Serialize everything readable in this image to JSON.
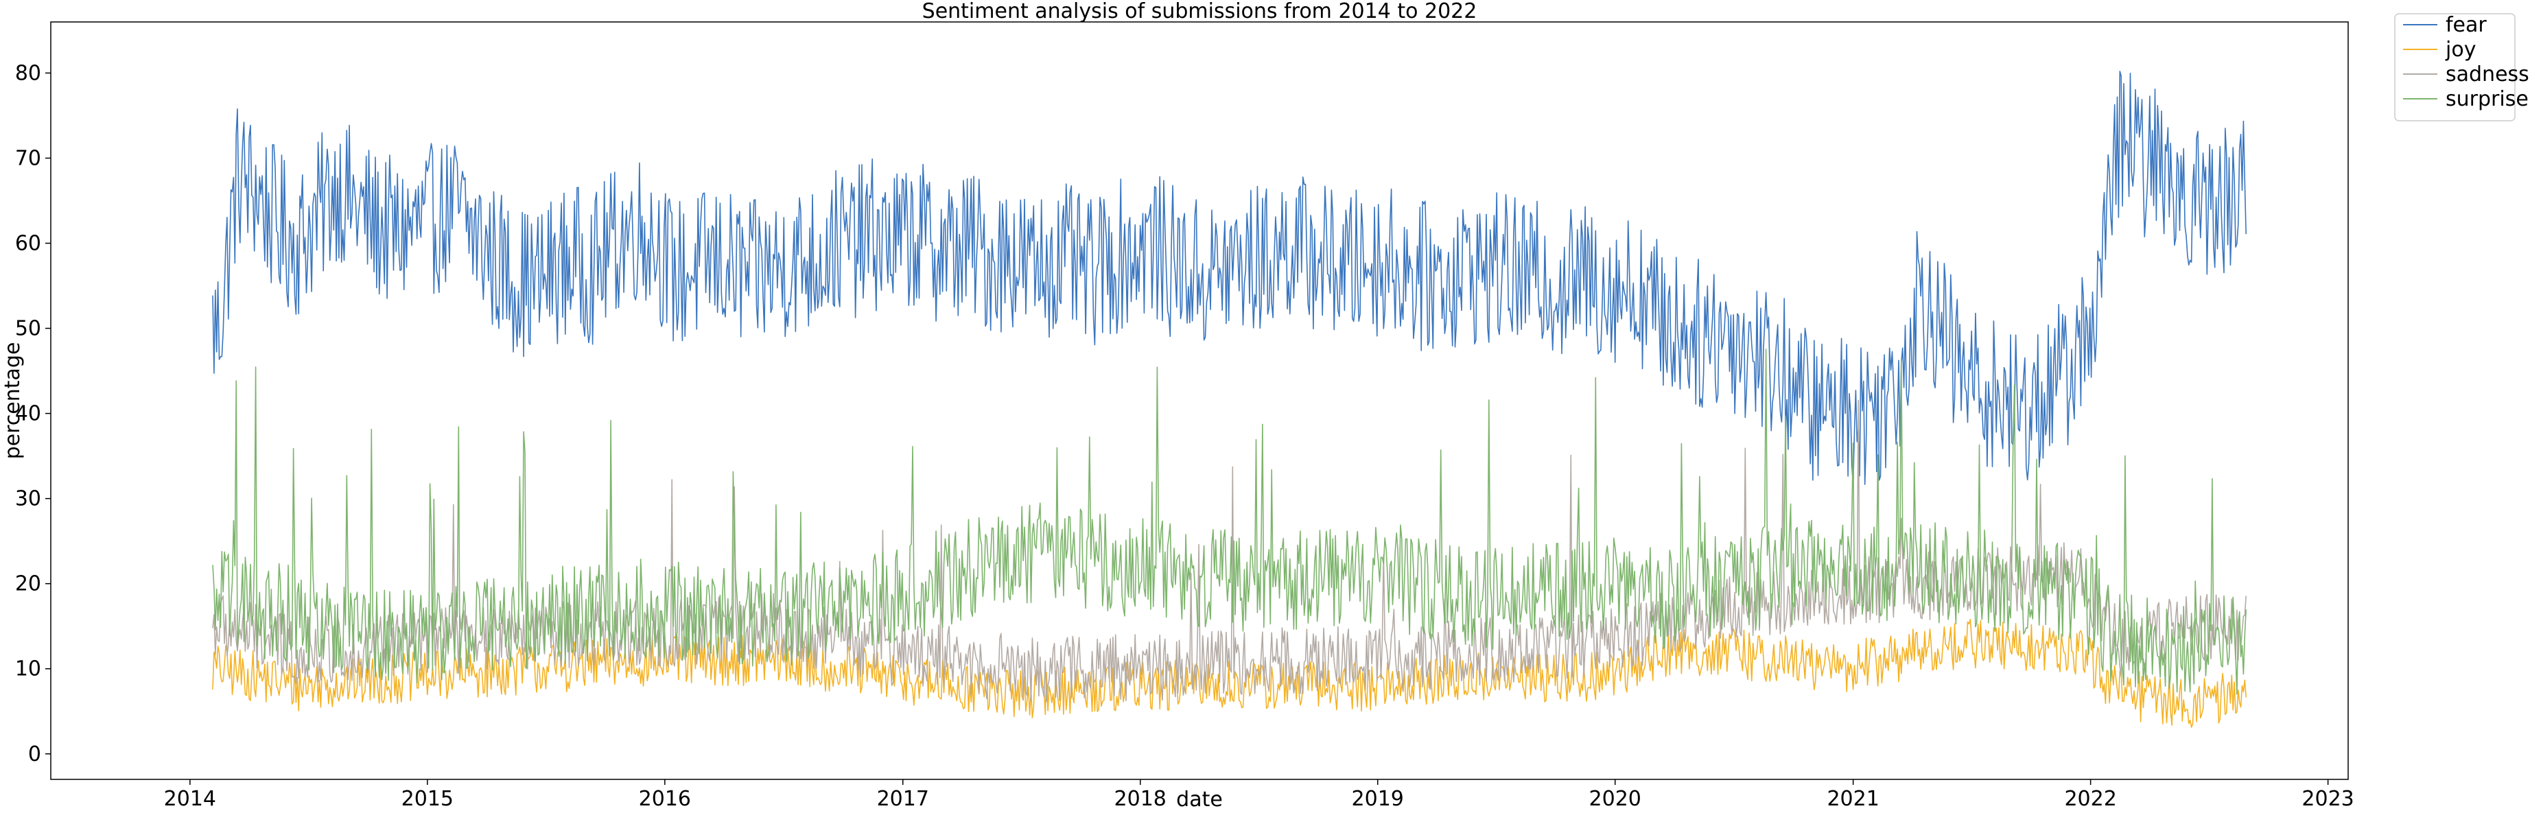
{
  "chart_data": {
    "type": "line",
    "title": "Sentiment analysis of submissions from 2014 to 2022",
    "xlabel": "date",
    "ylabel": "percentage",
    "xlim": [
      "2013-06-01",
      "2023-02-01"
    ],
    "ylim": [
      -3,
      86
    ],
    "x_ticks": [
      "2014",
      "2015",
      "2016",
      "2017",
      "2018",
      "2019",
      "2020",
      "2021",
      "2022",
      "2023"
    ],
    "y_ticks": [
      0,
      10,
      20,
      30,
      40,
      50,
      60,
      70,
      80
    ],
    "grid": false,
    "legend_position": "outside-top-right",
    "series": [
      {
        "name": "fear",
        "color": "#3a76bf",
        "start": "2014-02",
        "end": "2022-08",
        "points": [
          [
            "2014-02",
            50
          ],
          [
            "2014-03",
            68
          ],
          [
            "2014-04",
            66
          ],
          [
            "2014-05",
            62
          ],
          [
            "2014-06",
            60
          ],
          [
            "2014-07",
            63
          ],
          [
            "2014-08",
            67
          ],
          [
            "2014-09",
            64
          ],
          [
            "2014-10",
            62
          ],
          [
            "2014-11",
            61
          ],
          [
            "2014-12",
            62
          ],
          [
            "2015-01",
            63
          ],
          [
            "2015-02",
            64
          ],
          [
            "2015-03",
            61
          ],
          [
            "2015-04",
            58
          ],
          [
            "2015-05",
            56
          ],
          [
            "2015-06",
            55
          ],
          [
            "2015-07",
            57
          ],
          [
            "2015-08",
            58
          ],
          [
            "2015-09",
            57
          ],
          [
            "2015-10",
            60
          ],
          [
            "2015-11",
            62
          ],
          [
            "2015-12",
            61
          ],
          [
            "2016-01",
            56
          ],
          [
            "2016-02",
            57
          ],
          [
            "2016-03",
            58
          ],
          [
            "2016-04",
            57
          ],
          [
            "2016-05",
            56
          ],
          [
            "2016-06",
            57
          ],
          [
            "2016-07",
            58
          ],
          [
            "2016-08",
            58
          ],
          [
            "2016-09",
            60
          ],
          [
            "2016-10",
            60
          ],
          [
            "2016-11",
            61
          ],
          [
            "2016-12",
            60
          ],
          [
            "2017-01",
            61
          ],
          [
            "2017-02",
            60
          ],
          [
            "2017-03",
            59
          ],
          [
            "2017-04",
            60
          ],
          [
            "2017-05",
            58
          ],
          [
            "2017-06",
            59
          ],
          [
            "2017-07",
            57
          ],
          [
            "2017-08",
            58
          ],
          [
            "2017-09",
            58
          ],
          [
            "2017-10",
            56
          ],
          [
            "2017-11",
            58
          ],
          [
            "2017-12",
            59
          ],
          [
            "2018-01",
            60
          ],
          [
            "2018-02",
            58
          ],
          [
            "2018-03",
            57
          ],
          [
            "2018-04",
            56
          ],
          [
            "2018-05",
            57
          ],
          [
            "2018-06",
            58
          ],
          [
            "2018-07",
            58
          ],
          [
            "2018-08",
            60
          ],
          [
            "2018-09",
            59
          ],
          [
            "2018-10",
            58
          ],
          [
            "2018-11",
            57
          ],
          [
            "2018-12",
            58
          ],
          [
            "2019-01",
            58
          ],
          [
            "2019-02",
            57
          ],
          [
            "2019-03",
            56
          ],
          [
            "2019-04",
            56
          ],
          [
            "2019-05",
            57
          ],
          [
            "2019-06",
            57
          ],
          [
            "2019-07",
            57
          ],
          [
            "2019-08",
            56
          ],
          [
            "2019-09",
            56
          ],
          [
            "2019-10",
            55
          ],
          [
            "2019-11",
            56
          ],
          [
            "2019-12",
            55
          ],
          [
            "2020-01",
            55
          ],
          [
            "2020-02",
            54
          ],
          [
            "2020-03",
            51
          ],
          [
            "2020-04",
            50
          ],
          [
            "2020-05",
            49
          ],
          [
            "2020-06",
            50
          ],
          [
            "2020-07",
            48
          ],
          [
            "2020-08",
            47
          ],
          [
            "2020-09",
            45
          ],
          [
            "2020-10",
            42
          ],
          [
            "2020-11",
            40
          ],
          [
            "2020-12",
            41
          ],
          [
            "2021-01",
            40
          ],
          [
            "2021-02",
            41
          ],
          [
            "2021-03",
            45
          ],
          [
            "2021-04",
            55
          ],
          [
            "2021-05",
            50
          ],
          [
            "2021-06",
            45
          ],
          [
            "2021-07",
            43
          ],
          [
            "2021-08",
            42
          ],
          [
            "2021-09",
            40
          ],
          [
            "2021-10",
            42
          ],
          [
            "2021-11",
            44
          ],
          [
            "2021-12",
            47
          ],
          [
            "2022-01",
            55
          ],
          [
            "2022-02",
            73
          ],
          [
            "2022-03",
            70
          ],
          [
            "2022-04",
            69
          ],
          [
            "2022-05",
            67
          ],
          [
            "2022-06",
            65
          ],
          [
            "2022-07",
            64
          ],
          [
            "2022-08",
            67
          ]
        ]
      },
      {
        "name": "joy",
        "color": "#f4b223",
        "start": "2014-02",
        "end": "2022-08",
        "points": [
          [
            "2014-02",
            10
          ],
          [
            "2014-06",
            8
          ],
          [
            "2014-12",
            9
          ],
          [
            "2015-06",
            10
          ],
          [
            "2015-12",
            11
          ],
          [
            "2016-06",
            11
          ],
          [
            "2016-12",
            9
          ],
          [
            "2017-06",
            7
          ],
          [
            "2017-12",
            8
          ],
          [
            "2018-06",
            8
          ],
          [
            "2018-12",
            8
          ],
          [
            "2019-06",
            9
          ],
          [
            "2019-12",
            9
          ],
          [
            "2020-03",
            12
          ],
          [
            "2020-06",
            12
          ],
          [
            "2020-12",
            10
          ],
          [
            "2021-06",
            13
          ],
          [
            "2021-12",
            12
          ],
          [
            "2022-02",
            7
          ],
          [
            "2022-06",
            6
          ],
          [
            "2022-08",
            7
          ]
        ]
      },
      {
        "name": "sadness",
        "color": "#b3aaa4",
        "start": "2014-02",
        "end": "2022-08",
        "points": [
          [
            "2014-02",
            15
          ],
          [
            "2014-06",
            12
          ],
          [
            "2014-12",
            13
          ],
          [
            "2015-06",
            14
          ],
          [
            "2015-12",
            14
          ],
          [
            "2016-06",
            15
          ],
          [
            "2016-12",
            12
          ],
          [
            "2017-06",
            10
          ],
          [
            "2017-12",
            10
          ],
          [
            "2018-06",
            11
          ],
          [
            "2018-12",
            11
          ],
          [
            "2019-06",
            12
          ],
          [
            "2019-12",
            13
          ],
          [
            "2020-03",
            15
          ],
          [
            "2020-06",
            17
          ],
          [
            "2020-12",
            19
          ],
          [
            "2021-06",
            20
          ],
          [
            "2021-12",
            21
          ],
          [
            "2022-02",
            13
          ],
          [
            "2022-06",
            15
          ],
          [
            "2022-08",
            15
          ]
        ]
      },
      {
        "name": "surprise",
        "color": "#7db46c",
        "start": "2014-02",
        "end": "2022-08",
        "points": [
          [
            "2014-02",
            18
          ],
          [
            "2014-06",
            16
          ],
          [
            "2014-12",
            14
          ],
          [
            "2015-06",
            16
          ],
          [
            "2015-12",
            17
          ],
          [
            "2016-06",
            16
          ],
          [
            "2016-12",
            18
          ],
          [
            "2017-06",
            24
          ],
          [
            "2017-12",
            22
          ],
          [
            "2018-06",
            20
          ],
          [
            "2018-12",
            21
          ],
          [
            "2019-06",
            18
          ],
          [
            "2019-12",
            20
          ],
          [
            "2020-03",
            18
          ],
          [
            "2020-06",
            20
          ],
          [
            "2020-12",
            22
          ],
          [
            "2021-06",
            21
          ],
          [
            "2021-12",
            19
          ],
          [
            "2022-02",
            13
          ],
          [
            "2022-06",
            13
          ],
          [
            "2022-08",
            13
          ]
        ]
      }
    ]
  }
}
